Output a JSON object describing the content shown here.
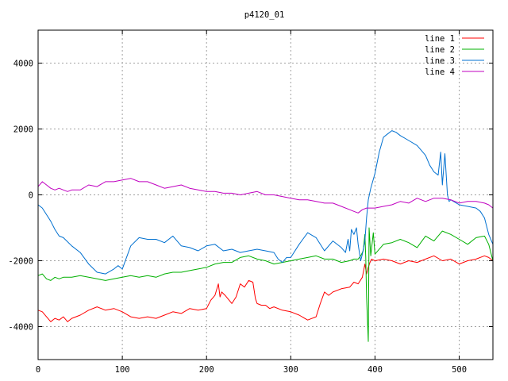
{
  "chart_data": {
    "type": "line",
    "title": "p4120_01",
    "xlabel": "",
    "ylabel": "",
    "xlim": [
      0,
      540
    ],
    "ylim": [
      -5000,
      5000
    ],
    "xticks": [
      0,
      100,
      200,
      300,
      400,
      500
    ],
    "yticks": [
      -4000,
      -2000,
      0,
      2000,
      4000
    ],
    "grid": true,
    "legend_position": "top-right",
    "series": [
      {
        "name": "line 1",
        "color": "#ff0000",
        "x": [
          0,
          5,
          10,
          15,
          20,
          25,
          30,
          35,
          40,
          50,
          60,
          70,
          80,
          90,
          100,
          110,
          120,
          130,
          140,
          150,
          160,
          170,
          180,
          190,
          200,
          205,
          210,
          214,
          216,
          218,
          222,
          230,
          235,
          240,
          245,
          250,
          255,
          258,
          260,
          265,
          270,
          275,
          280,
          290,
          300,
          310,
          320,
          330,
          335,
          340,
          345,
          350,
          360,
          370,
          375,
          380,
          385,
          388,
          390,
          392,
          394,
          396,
          400,
          410,
          420,
          430,
          440,
          450,
          460,
          470,
          480,
          490,
          500,
          510,
          520,
          530,
          535,
          540
        ],
        "values": [
          -3500,
          -3550,
          -3700,
          -3850,
          -3750,
          -3800,
          -3700,
          -3850,
          -3750,
          -3650,
          -3500,
          -3400,
          -3500,
          -3450,
          -3550,
          -3700,
          -3750,
          -3700,
          -3750,
          -3650,
          -3550,
          -3600,
          -3450,
          -3500,
          -3450,
          -3200,
          -3050,
          -2700,
          -3100,
          -2950,
          -3050,
          -3300,
          -3100,
          -2700,
          -2800,
          -2600,
          -2650,
          -3150,
          -3300,
          -3350,
          -3350,
          -3450,
          -3400,
          -3500,
          -3550,
          -3650,
          -3800,
          -3700,
          -3300,
          -2950,
          -3050,
          -2950,
          -2850,
          -2800,
          -2650,
          -2700,
          -2500,
          -2100,
          -2400,
          -2200,
          -2050,
          -1950,
          -2000,
          -1950,
          -2000,
          -2100,
          -2000,
          -2050,
          -1950,
          -1850,
          -2000,
          -1950,
          -2100,
          -2000,
          -1950,
          -1850,
          -1900,
          -2000
        ]
      },
      {
        "name": "line 2",
        "color": "#00b000",
        "x": [
          0,
          5,
          10,
          15,
          20,
          25,
          30,
          40,
          50,
          60,
          70,
          80,
          90,
          100,
          110,
          120,
          130,
          140,
          150,
          160,
          170,
          180,
          190,
          200,
          210,
          220,
          230,
          240,
          250,
          260,
          270,
          280,
          290,
          300,
          310,
          320,
          330,
          340,
          350,
          360,
          370,
          375,
          380,
          383,
          386,
          388,
          389,
          390,
          392,
          393,
          395,
          398,
          400,
          410,
          420,
          430,
          440,
          450,
          460,
          470,
          480,
          490,
          500,
          510,
          520,
          530,
          535,
          540
        ],
        "values": [
          -2450,
          -2400,
          -2550,
          -2600,
          -2500,
          -2550,
          -2500,
          -2500,
          -2450,
          -2500,
          -2550,
          -2600,
          -2550,
          -2500,
          -2450,
          -2500,
          -2450,
          -2500,
          -2400,
          -2350,
          -2350,
          -2300,
          -2250,
          -2200,
          -2100,
          -2050,
          -2050,
          -1900,
          -1850,
          -1950,
          -2000,
          -2100,
          -2050,
          -2000,
          -1950,
          -1900,
          -1850,
          -1950,
          -1950,
          -2050,
          -2000,
          -1950,
          -1950,
          -1850,
          -1700,
          -1200,
          -1900,
          -3100,
          -4450,
          -1000,
          -1850,
          -1150,
          -1800,
          -1500,
          -1450,
          -1350,
          -1450,
          -1600,
          -1250,
          -1400,
          -1100,
          -1200,
          -1350,
          -1500,
          -1300,
          -1250,
          -1500,
          -2000
        ]
      },
      {
        "name": "line 3",
        "color": "#0070d0",
        "x": [
          0,
          5,
          10,
          15,
          20,
          25,
          30,
          40,
          50,
          60,
          70,
          80,
          90,
          95,
          100,
          110,
          120,
          130,
          140,
          150,
          160,
          170,
          180,
          190,
          200,
          210,
          220,
          230,
          240,
          250,
          260,
          270,
          280,
          285,
          290,
          295,
          300,
          310,
          320,
          330,
          340,
          350,
          360,
          365,
          368,
          370,
          372,
          375,
          378,
          380,
          383,
          385,
          388,
          390,
          392,
          395,
          400,
          405,
          410,
          415,
          420,
          425,
          430,
          440,
          450,
          460,
          465,
          470,
          475,
          478,
          480,
          483,
          486,
          488,
          490,
          500,
          510,
          520,
          525,
          530,
          535,
          540
        ],
        "values": [
          -300,
          -400,
          -600,
          -800,
          -1050,
          -1250,
          -1300,
          -1550,
          -1750,
          -2100,
          -2350,
          -2400,
          -2250,
          -2150,
          -2250,
          -1550,
          -1300,
          -1350,
          -1350,
          -1450,
          -1250,
          -1550,
          -1600,
          -1700,
          -1550,
          -1500,
          -1700,
          -1650,
          -1750,
          -1700,
          -1650,
          -1700,
          -1750,
          -1950,
          -2050,
          -1900,
          -1900,
          -1500,
          -1150,
          -1300,
          -1700,
          -1400,
          -1600,
          -1750,
          -1350,
          -1700,
          -1050,
          -1200,
          -1000,
          -1500,
          -2000,
          -1800,
          -1400,
          -700,
          -150,
          200,
          650,
          1300,
          1750,
          1850,
          1950,
          1900,
          1800,
          1650,
          1500,
          1200,
          900,
          700,
          600,
          1300,
          300,
          1250,
          0,
          -200,
          -150,
          -300,
          -350,
          -400,
          -500,
          -700,
          -1200,
          -1500
        ]
      },
      {
        "name": "line 4",
        "color": "#c000c0",
        "x": [
          0,
          5,
          10,
          15,
          20,
          25,
          30,
          35,
          40,
          50,
          60,
          70,
          80,
          90,
          100,
          110,
          120,
          130,
          140,
          150,
          160,
          170,
          180,
          190,
          200,
          210,
          220,
          230,
          240,
          250,
          260,
          270,
          280,
          290,
          300,
          310,
          320,
          330,
          340,
          350,
          360,
          370,
          375,
          380,
          385,
          390,
          400,
          410,
          420,
          430,
          440,
          450,
          460,
          470,
          480,
          490,
          500,
          510,
          520,
          530,
          535,
          540
        ],
        "values": [
          250,
          400,
          300,
          200,
          150,
          200,
          150,
          100,
          150,
          150,
          300,
          250,
          400,
          400,
          450,
          500,
          400,
          400,
          300,
          200,
          250,
          300,
          200,
          150,
          100,
          100,
          50,
          50,
          0,
          50,
          100,
          0,
          0,
          -50,
          -100,
          -150,
          -150,
          -200,
          -250,
          -250,
          -350,
          -450,
          -500,
          -550,
          -450,
          -400,
          -400,
          -350,
          -300,
          -200,
          -250,
          -100,
          -200,
          -100,
          -100,
          -150,
          -250,
          -200,
          -200,
          -250,
          -300,
          -400
        ]
      }
    ]
  }
}
